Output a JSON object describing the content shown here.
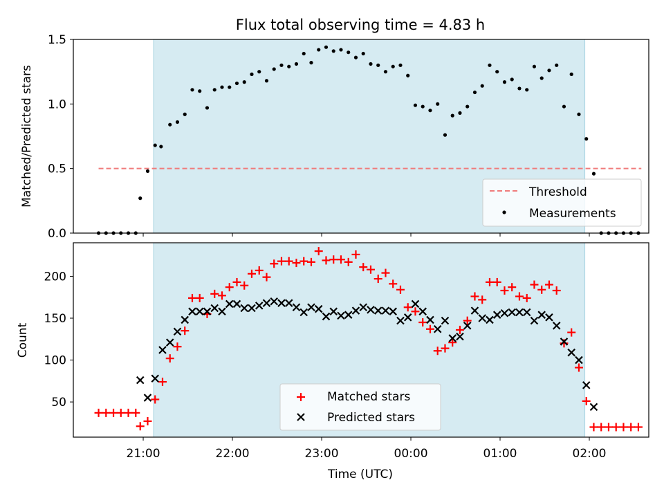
{
  "chart_data": [
    {
      "type": "scatter",
      "title": "Flux total observing time = 4.83 h",
      "xlabel": "",
      "ylabel": "Matched/Predicted stars",
      "ylim": [
        0,
        1.5
      ],
      "yticks": [
        "0.0",
        "0.5",
        "1.0",
        "1.5"
      ],
      "xlim": [
        "2024-01-01T20:13",
        "2024-01-02T02:40"
      ],
      "xticks": [
        "21:00",
        "22:00",
        "23:00",
        "00:00",
        "01:00",
        "02:00"
      ],
      "shaded_interval": [
        "2024-01-01T21:07",
        "2024-01-02T01:57"
      ],
      "legend_position": "lower-right",
      "threshold": {
        "name": "Threshold",
        "value": 0.5,
        "x": [
          "2024-01-01T20:30",
          "2024-01-02T02:35"
        ],
        "color": "#f07b7b"
      },
      "measurements": {
        "name": "Measurements",
        "color": "#000000",
        "x": [
          "2024-01-01T20:30",
          "2024-01-01T20:35",
          "2024-01-01T20:40",
          "2024-01-01T20:45",
          "2024-01-01T20:50",
          "2024-01-01T20:55",
          "2024-01-01T20:58",
          "2024-01-01T21:03",
          "2024-01-01T21:08",
          "2024-01-01T21:12",
          "2024-01-01T21:18",
          "2024-01-01T21:23",
          "2024-01-01T21:28",
          "2024-01-01T21:33",
          "2024-01-01T21:38",
          "2024-01-01T21:43",
          "2024-01-01T21:48",
          "2024-01-01T21:53",
          "2024-01-01T21:58",
          "2024-01-01T22:03",
          "2024-01-01T22:08",
          "2024-01-01T22:13",
          "2024-01-01T22:18",
          "2024-01-01T22:23",
          "2024-01-01T22:28",
          "2024-01-01T22:33",
          "2024-01-01T22:38",
          "2024-01-01T22:43",
          "2024-01-01T22:48",
          "2024-01-01T22:53",
          "2024-01-01T22:58",
          "2024-01-01T23:03",
          "2024-01-01T23:08",
          "2024-01-01T23:13",
          "2024-01-01T23:18",
          "2024-01-01T23:23",
          "2024-01-01T23:28",
          "2024-01-01T23:33",
          "2024-01-01T23:38",
          "2024-01-01T23:43",
          "2024-01-01T23:48",
          "2024-01-01T23:53",
          "2024-01-01T23:58",
          "2024-01-02T00:03",
          "2024-01-02T00:08",
          "2024-01-02T00:13",
          "2024-01-02T00:18",
          "2024-01-02T00:23",
          "2024-01-02T00:28",
          "2024-01-02T00:33",
          "2024-01-02T00:38",
          "2024-01-02T00:43",
          "2024-01-02T00:48",
          "2024-01-02T00:53",
          "2024-01-02T00:58",
          "2024-01-02T01:03",
          "2024-01-02T01:08",
          "2024-01-02T01:13",
          "2024-01-02T01:18",
          "2024-01-02T01:23",
          "2024-01-02T01:28",
          "2024-01-02T01:33",
          "2024-01-02T01:38",
          "2024-01-02T01:43",
          "2024-01-02T01:48",
          "2024-01-02T01:53",
          "2024-01-02T01:58",
          "2024-01-02T02:03",
          "2024-01-02T02:08",
          "2024-01-02T02:13",
          "2024-01-02T02:18",
          "2024-01-02T02:23",
          "2024-01-02T02:28",
          "2024-01-02T02:33"
        ],
        "y": [
          0,
          0,
          0,
          0,
          0,
          0,
          0.27,
          0.48,
          0.68,
          0.67,
          0.84,
          0.86,
          0.92,
          1.11,
          1.1,
          0.97,
          1.11,
          1.13,
          1.13,
          1.16,
          1.17,
          1.23,
          1.25,
          1.18,
          1.27,
          1.3,
          1.29,
          1.31,
          1.39,
          1.32,
          1.42,
          1.44,
          1.41,
          1.42,
          1.4,
          1.36,
          1.39,
          1.31,
          1.3,
          1.25,
          1.29,
          1.3,
          1.22,
          0.99,
          0.98,
          0.95,
          1.0,
          0.76,
          0.91,
          0.93,
          0.98,
          1.09,
          1.14,
          1.3,
          1.25,
          1.17,
          1.19,
          1.12,
          1.11,
          1.29,
          1.2,
          1.26,
          1.3,
          0.98,
          1.23,
          0.92,
          0.73,
          0.46,
          0,
          0,
          0,
          0,
          0,
          0
        ]
      }
    },
    {
      "type": "scatter",
      "title": "",
      "xlabel": "Time (UTC)",
      "ylabel": "Count",
      "ylim": [
        8,
        240
      ],
      "yticks": [
        "50",
        "100",
        "150",
        "200"
      ],
      "xlim": [
        "2024-01-01T20:13",
        "2024-01-02T02:40"
      ],
      "xticks": [
        "21:00",
        "22:00",
        "23:00",
        "00:00",
        "01:00",
        "02:00"
      ],
      "shaded_interval": [
        "2024-01-01T21:07",
        "2024-01-02T01:57"
      ],
      "legend_position": "lower-center",
      "series": [
        {
          "name": "Matched stars",
          "marker": "+",
          "color": "#ff0000",
          "x": [
            "2024-01-01T20:30",
            "2024-01-01T20:35",
            "2024-01-01T20:40",
            "2024-01-01T20:45",
            "2024-01-01T20:50",
            "2024-01-01T20:55",
            "2024-01-01T20:58",
            "2024-01-01T21:03",
            "2024-01-01T21:08",
            "2024-01-01T21:13",
            "2024-01-01T21:18",
            "2024-01-01T21:23",
            "2024-01-01T21:28",
            "2024-01-01T21:33",
            "2024-01-01T21:38",
            "2024-01-01T21:43",
            "2024-01-01T21:48",
            "2024-01-01T21:53",
            "2024-01-01T21:58",
            "2024-01-01T22:03",
            "2024-01-01T22:08",
            "2024-01-01T22:13",
            "2024-01-01T22:18",
            "2024-01-01T22:23",
            "2024-01-01T22:28",
            "2024-01-01T22:33",
            "2024-01-01T22:38",
            "2024-01-01T22:43",
            "2024-01-01T22:48",
            "2024-01-01T22:53",
            "2024-01-01T22:58",
            "2024-01-01T23:03",
            "2024-01-01T23:08",
            "2024-01-01T23:13",
            "2024-01-01T23:18",
            "2024-01-01T23:23",
            "2024-01-01T23:28",
            "2024-01-01T23:33",
            "2024-01-01T23:38",
            "2024-01-01T23:43",
            "2024-01-01T23:48",
            "2024-01-01T23:53",
            "2024-01-01T23:58",
            "2024-01-02T00:03",
            "2024-01-02T00:08",
            "2024-01-02T00:13",
            "2024-01-02T00:18",
            "2024-01-02T00:23",
            "2024-01-02T00:28",
            "2024-01-02T00:33",
            "2024-01-02T00:38",
            "2024-01-02T00:43",
            "2024-01-02T00:48",
            "2024-01-02T00:53",
            "2024-01-02T00:58",
            "2024-01-02T01:03",
            "2024-01-02T01:08",
            "2024-01-02T01:13",
            "2024-01-02T01:18",
            "2024-01-02T01:23",
            "2024-01-02T01:28",
            "2024-01-02T01:33",
            "2024-01-02T01:38",
            "2024-01-02T01:43",
            "2024-01-02T01:48",
            "2024-01-02T01:53",
            "2024-01-02T01:58",
            "2024-01-02T02:03",
            "2024-01-02T02:08",
            "2024-01-02T02:13",
            "2024-01-02T02:18",
            "2024-01-02T02:23",
            "2024-01-02T02:28",
            "2024-01-02T02:33"
          ],
          "y": [
            37,
            37,
            37,
            37,
            37,
            37,
            21,
            27,
            53,
            74,
            102,
            116,
            135,
            174,
            174,
            155,
            179,
            177,
            187,
            193,
            189,
            203,
            207,
            199,
            215,
            218,
            218,
            216,
            218,
            217,
            230,
            219,
            220,
            220,
            217,
            226,
            211,
            208,
            197,
            204,
            191,
            184,
            163,
            158,
            145,
            137,
            111,
            114,
            121,
            136,
            147,
            176,
            172,
            193,
            193,
            183,
            187,
            176,
            174,
            190,
            184,
            190,
            183,
            120,
            133,
            91,
            51,
            20,
            20,
            20,
            20,
            20,
            20,
            20
          ]
        },
        {
          "name": "Predicted stars",
          "marker": "x",
          "color": "#000000",
          "x": [
            "2024-01-01T20:58",
            "2024-01-01T21:03",
            "2024-01-01T21:08",
            "2024-01-01T21:13",
            "2024-01-01T21:18",
            "2024-01-01T21:23",
            "2024-01-01T21:28",
            "2024-01-01T21:33",
            "2024-01-01T21:38",
            "2024-01-01T21:43",
            "2024-01-01T21:48",
            "2024-01-01T21:53",
            "2024-01-01T21:58",
            "2024-01-01T22:03",
            "2024-01-01T22:08",
            "2024-01-01T22:13",
            "2024-01-01T22:18",
            "2024-01-01T22:23",
            "2024-01-01T22:28",
            "2024-01-01T22:33",
            "2024-01-01T22:38",
            "2024-01-01T22:43",
            "2024-01-01T22:48",
            "2024-01-01T22:53",
            "2024-01-01T22:58",
            "2024-01-01T23:03",
            "2024-01-01T23:08",
            "2024-01-01T23:13",
            "2024-01-01T23:18",
            "2024-01-01T23:23",
            "2024-01-01T23:28",
            "2024-01-01T23:33",
            "2024-01-01T23:38",
            "2024-01-01T23:43",
            "2024-01-01T23:48",
            "2024-01-01T23:53",
            "2024-01-01T23:58",
            "2024-01-02T00:03",
            "2024-01-02T00:08",
            "2024-01-02T00:13",
            "2024-01-02T00:18",
            "2024-01-02T00:23",
            "2024-01-02T00:28",
            "2024-01-02T00:33",
            "2024-01-02T00:38",
            "2024-01-02T00:43",
            "2024-01-02T00:48",
            "2024-01-02T00:53",
            "2024-01-02T00:58",
            "2024-01-02T01:03",
            "2024-01-02T01:08",
            "2024-01-02T01:13",
            "2024-01-02T01:18",
            "2024-01-02T01:23",
            "2024-01-02T01:28",
            "2024-01-02T01:33",
            "2024-01-02T01:38",
            "2024-01-02T01:43",
            "2024-01-02T01:48",
            "2024-01-02T01:53",
            "2024-01-02T01:58",
            "2024-01-02T02:03"
          ],
          "y": [
            76,
            55,
            78,
            112,
            121,
            134,
            148,
            158,
            158,
            158,
            162,
            158,
            167,
            167,
            162,
            162,
            165,
            168,
            170,
            168,
            168,
            163,
            157,
            163,
            161,
            152,
            158,
            153,
            154,
            159,
            163,
            160,
            159,
            159,
            158,
            147,
            151,
            167,
            158,
            148,
            137,
            147,
            126,
            128,
            141,
            159,
            150,
            148,
            154,
            156,
            157,
            157,
            157,
            147,
            154,
            151,
            141,
            122,
            109,
            100,
            70,
            44
          ]
        }
      ]
    }
  ]
}
